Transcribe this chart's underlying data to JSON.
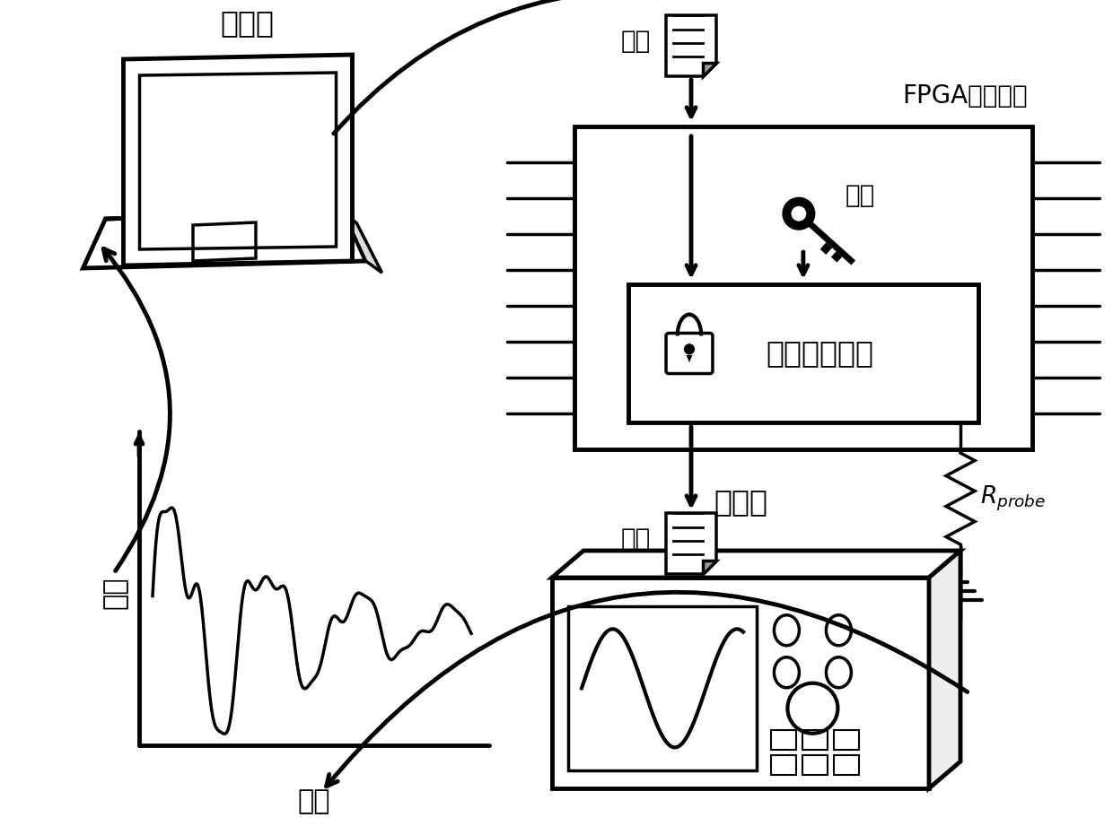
{
  "bg_color": "#ffffff",
  "line_color": "#000000",
  "fpga_label": "FPGA硬件平台",
  "plaintext_label": "明文",
  "ciphertext_label": "密文",
  "key_label": "密鑰",
  "engine_label": "加密算法引擎",
  "rprobe_label": "$R_{probe}$",
  "computer_label": "计算机",
  "oscilloscope_label": "示波器",
  "power_label": "功耗",
  "time_label": "时间",
  "font": "STSong",
  "font_fallbacks": [
    "SimSun",
    "NSimSun",
    "AR PL UMing CN",
    "WenQuanYi Zen Hei",
    "DejaVu Sans"
  ]
}
